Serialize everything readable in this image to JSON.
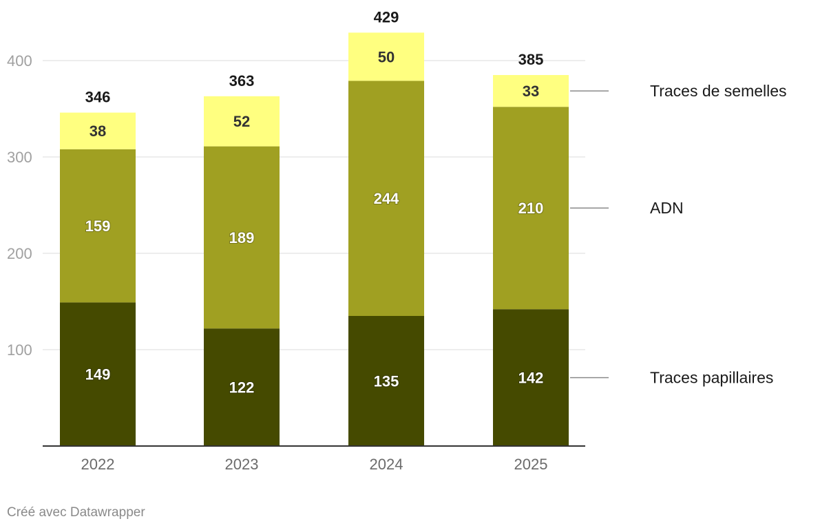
{
  "chart_data": {
    "type": "bar",
    "stacked": true,
    "categories": [
      "2022",
      "2023",
      "2024",
      "2025"
    ],
    "series": [
      {
        "name": "Traces papillaires",
        "values": [
          149,
          122,
          135,
          142
        ],
        "color": "#454a00",
        "label_color": "#ffffff"
      },
      {
        "name": "ADN",
        "values": [
          159,
          189,
          244,
          210
        ],
        "color": "#a0a022",
        "label_color": "#ffffff"
      },
      {
        "name": "Traces de semelles",
        "values": [
          38,
          52,
          50,
          33
        ],
        "color": "#ffff80",
        "label_color": "#333333"
      }
    ],
    "totals": [
      346,
      363,
      429,
      385
    ],
    "y_ticks": [
      100,
      200,
      300,
      400
    ],
    "ylim": [
      0,
      440
    ],
    "grid": true,
    "legend_position": "right"
  },
  "credit": "Créé avec Datawrapper"
}
